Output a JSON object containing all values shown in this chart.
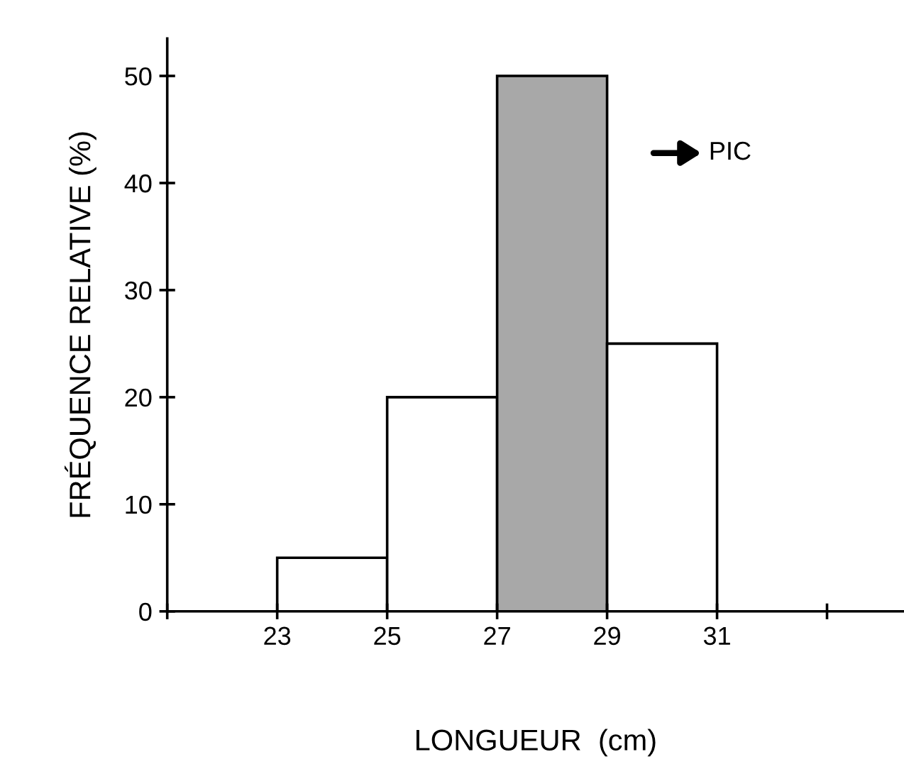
{
  "chart_data": {
    "type": "histogram",
    "xlabel": "LONGUEUR  (cm)",
    "ylabel": "FRÉQUENCE RELATIVE (%)",
    "bins": [
      23,
      25,
      27,
      29,
      31
    ],
    "values": [
      5,
      20,
      50,
      25
    ],
    "colors": [
      "#ffffff",
      "#ffffff",
      "#a8a8a8",
      "#ffffff"
    ],
    "xlim": [
      21,
      34.4
    ],
    "xticks": [
      {
        "value": 21,
        "label": null
      },
      23,
      25,
      27,
      29,
      31,
      {
        "value": 33,
        "label": null
      }
    ],
    "ylim": [
      0,
      53.5
    ],
    "yticks": [
      0,
      10,
      20,
      30,
      40,
      50
    ],
    "annotations": [
      "PIC"
    ],
    "grid": false,
    "legend": false
  }
}
